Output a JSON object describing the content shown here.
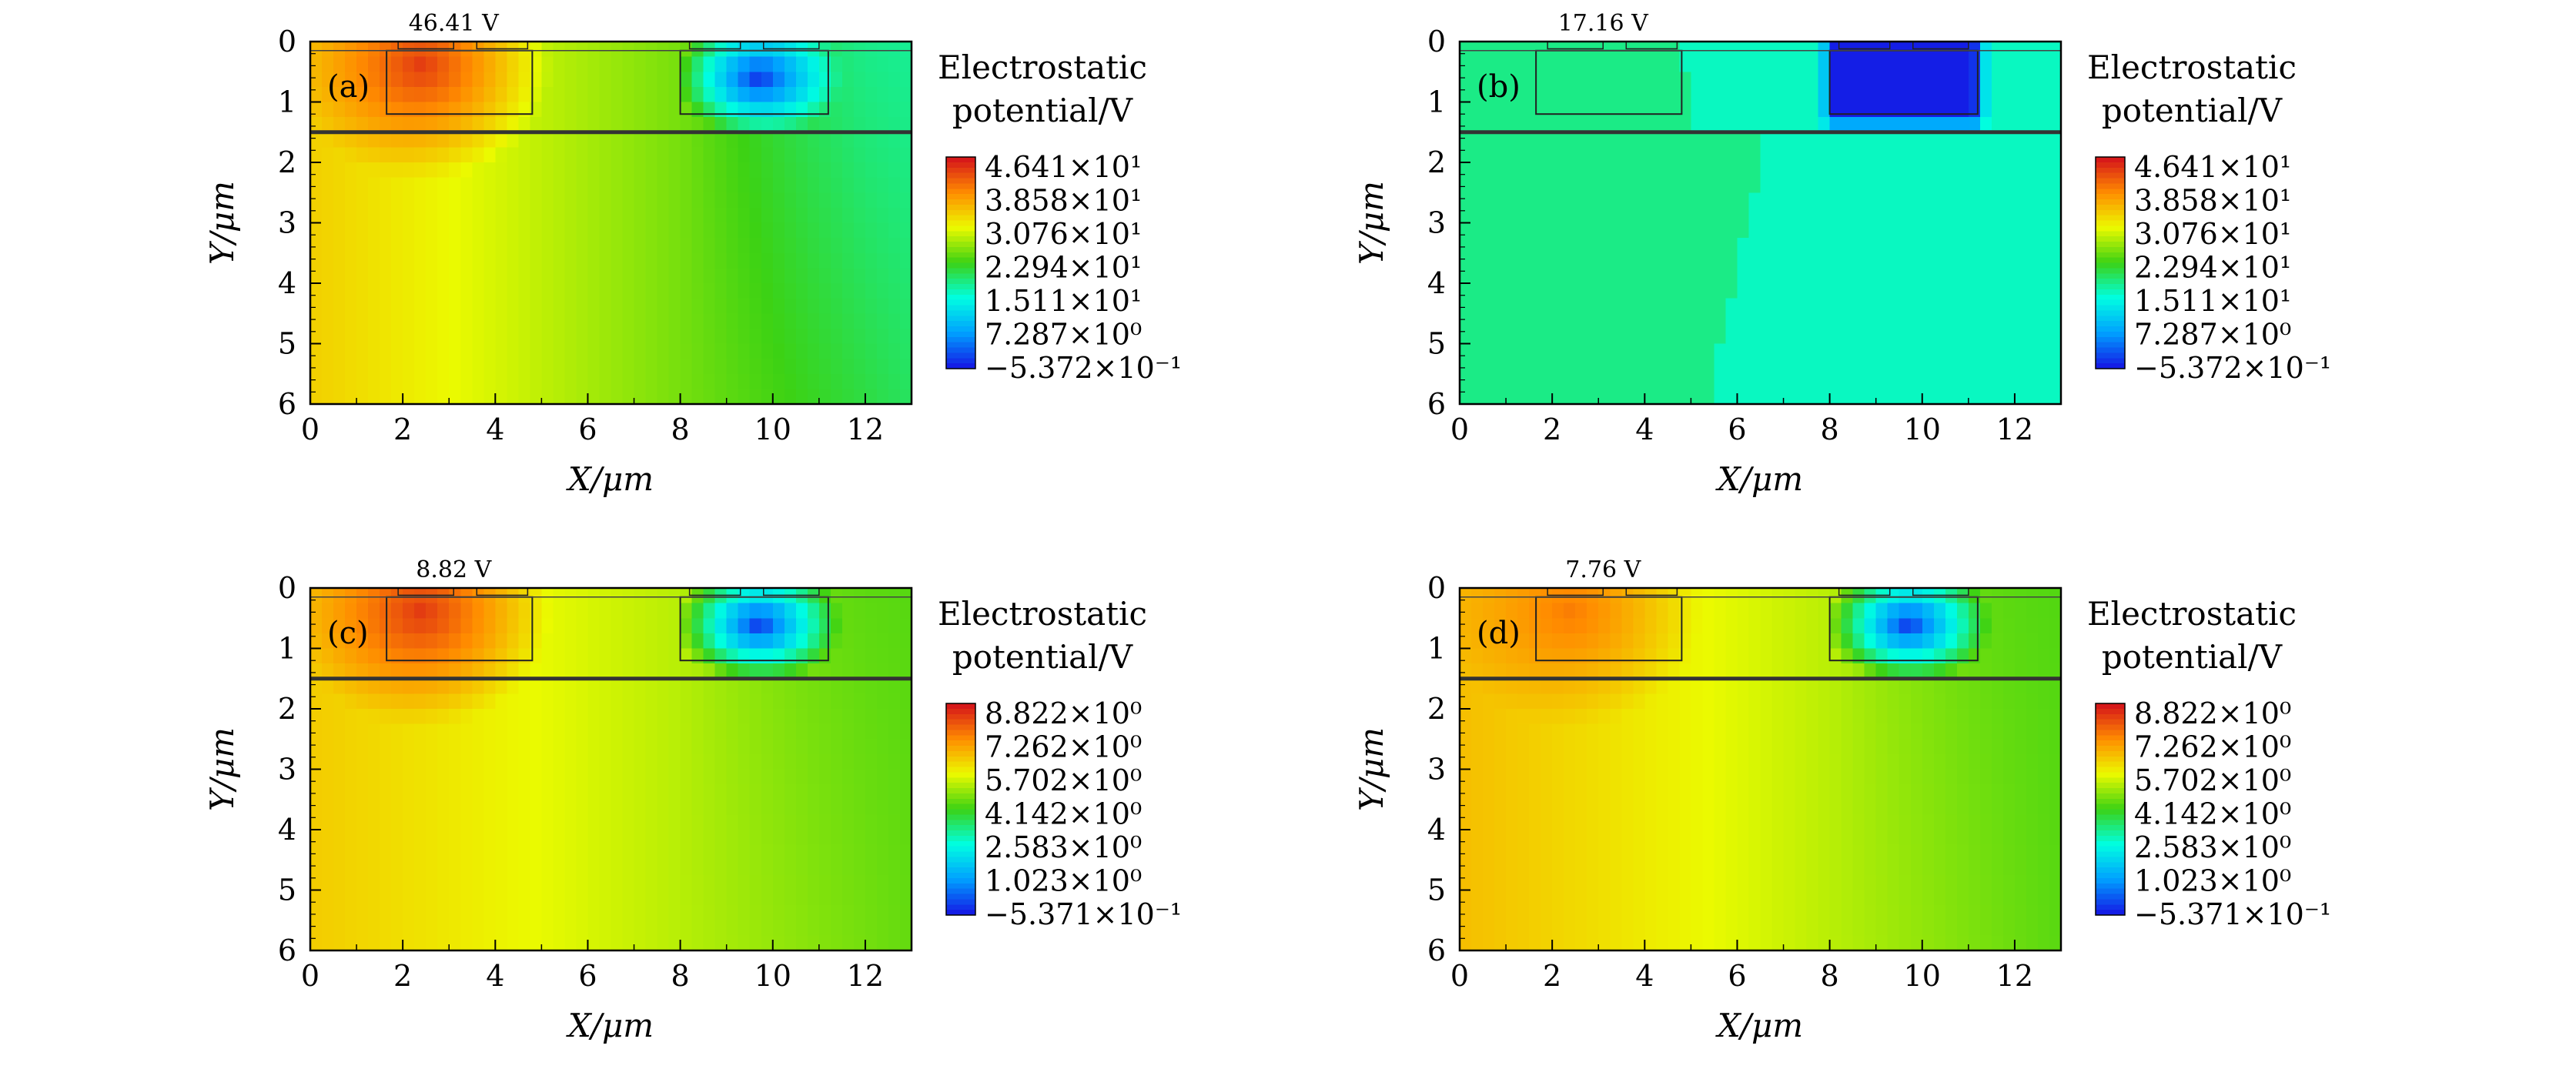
{
  "chart_data": [
    {
      "type": "heatmap",
      "panel_label": "(a)",
      "annotation": "46.41 V",
      "xlabel": "X/μm",
      "ylabel": "Y/μm",
      "xlim": [
        0,
        13
      ],
      "ylim": [
        0,
        6
      ],
      "x_ticks": [
        "0",
        "2",
        "4",
        "6",
        "8",
        "10",
        "12"
      ],
      "y_ticks": [
        "0",
        "1",
        "2",
        "3",
        "4",
        "5",
        "6"
      ],
      "colorbar": {
        "title_line1": "Electrostatic",
        "title_line2": "potential/V",
        "min": -0.5372,
        "max": 46.41,
        "tick_labels": [
          "4.641×10¹",
          "3.858×10¹",
          "3.076×10¹",
          "2.294×10¹",
          "1.511×10¹",
          "7.287×10⁰",
          "−5.372×10⁻¹"
        ]
      },
      "field": {
        "left_bottom": 34.0,
        "right_bottom": 20.0,
        "source_max": 46.41,
        "drain_min": -0.5372,
        "deep_right": 16.5,
        "mode": "normal"
      }
    },
    {
      "type": "heatmap",
      "panel_label": "(b)",
      "annotation": "17.16 V",
      "xlabel": "X/μm",
      "ylabel": "Y/μm",
      "xlim": [
        0,
        13
      ],
      "ylim": [
        0,
        6
      ],
      "x_ticks": [
        "0",
        "2",
        "4",
        "6",
        "8",
        "10",
        "12"
      ],
      "y_ticks": [
        "0",
        "1",
        "2",
        "3",
        "4",
        "5",
        "6"
      ],
      "colorbar": {
        "title_line1": "Electrostatic",
        "title_line2": "potential/V",
        "min": -0.5372,
        "max": 46.41,
        "tick_labels": [
          "4.641×10¹",
          "3.858×10¹",
          "3.076×10¹",
          "2.294×10¹",
          "1.511×10¹",
          "7.287×10⁰",
          "−5.372×10⁻¹"
        ]
      },
      "field": {
        "left_value": 18.5,
        "right_value": 16.2,
        "drain_min": -0.5372,
        "mode": "split"
      }
    },
    {
      "type": "heatmap",
      "panel_label": "(c)",
      "annotation": "8.82 V",
      "xlabel": "X/μm",
      "ylabel": "Y/μm",
      "xlim": [
        0,
        13
      ],
      "ylim": [
        0,
        6
      ],
      "x_ticks": [
        "0",
        "2",
        "4",
        "6",
        "8",
        "10",
        "12"
      ],
      "y_ticks": [
        "0",
        "1",
        "2",
        "3",
        "4",
        "5",
        "6"
      ],
      "colorbar": {
        "title_line1": "Electrostatic",
        "title_line2": "potential/V",
        "min": -0.5371,
        "max": 8.822,
        "tick_labels": [
          "8.822×10⁰",
          "7.262×10⁰",
          "5.702×10⁰",
          "4.142×10⁰",
          "2.583×10⁰",
          "1.023×10⁰",
          "−5.371×10⁻¹"
        ]
      },
      "field": {
        "left_bottom": 6.4,
        "right_bottom": 4.5,
        "source_max": 8.82,
        "drain_min": -0.5371,
        "deep_right": 4.3,
        "mode": "normal"
      }
    },
    {
      "type": "heatmap",
      "panel_label": "(d)",
      "annotation": "7.76 V",
      "xlabel": "X/μm",
      "ylabel": "Y/μm",
      "xlim": [
        0,
        13
      ],
      "ylim": [
        0,
        6
      ],
      "x_ticks": [
        "0",
        "2",
        "4",
        "6",
        "8",
        "10",
        "12"
      ],
      "y_ticks": [
        "0",
        "1",
        "2",
        "3",
        "4",
        "5",
        "6"
      ],
      "colorbar": {
        "title_line1": "Electrostatic",
        "title_line2": "potential/V",
        "min": -0.5371,
        "max": 8.822,
        "tick_labels": [
          "8.822×10⁰",
          "7.262×10⁰",
          "5.702×10⁰",
          "4.142×10⁰",
          "2.583×10⁰",
          "1.023×10⁰",
          "−5.371×10⁻¹"
        ]
      },
      "field": {
        "left_bottom": 6.6,
        "right_bottom": 4.4,
        "source_max": 7.76,
        "drain_min": -0.5371,
        "deep_right": 4.3,
        "mode": "normal"
      }
    }
  ]
}
